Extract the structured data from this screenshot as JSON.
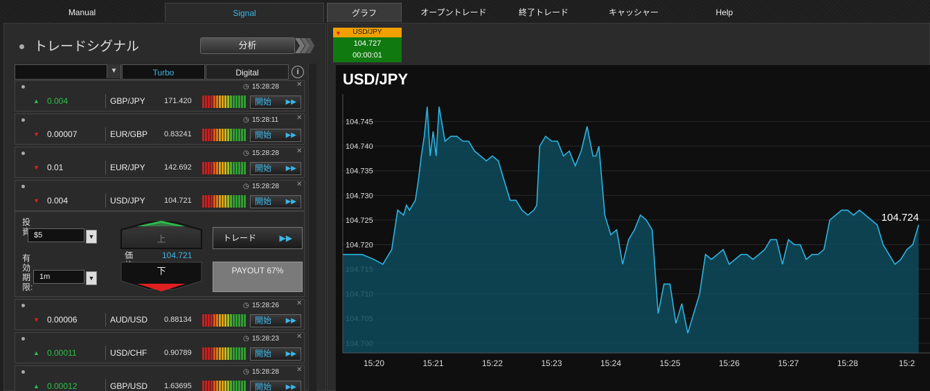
{
  "top_tabs": {
    "manual": "Manual",
    "signal": "Signal",
    "graph": "グラフ",
    "open_trades": "オープントレード",
    "closed_trades": "終了トレード",
    "cashier": "キャッシャー",
    "help": "Help"
  },
  "left_panel": {
    "title": "トレードシグナル",
    "analyze_button": "分析",
    "filter": {
      "select_value": "",
      "turbo": "Turbo",
      "digital": "Digital",
      "info": "i"
    }
  },
  "signals": [
    {
      "time": "15:28:28",
      "direction": "up",
      "change": "0.004",
      "pair": "GBP/JPY",
      "rate": "171.420",
      "start": "開始"
    },
    {
      "time": "15:28:11",
      "direction": "down",
      "change": "0.00007",
      "pair": "EUR/GBP",
      "rate": "0.83241",
      "start": "開始"
    },
    {
      "time": "15:28:28",
      "direction": "down",
      "change": "0.01",
      "pair": "EUR/JPY",
      "rate": "142.692",
      "start": "開始"
    },
    {
      "time": "15:28:28",
      "direction": "down",
      "change": "0.004",
      "pair": "USD/JPY",
      "rate": "104.721",
      "start": "開始"
    },
    {
      "time": "15:28:26",
      "direction": "down",
      "change": "0.00006",
      "pair": "AUD/USD",
      "rate": "0.88134",
      "start": "開始"
    },
    {
      "time": "15:28:23",
      "direction": "up",
      "change": "0.00011",
      "pair": "USD/CHF",
      "rate": "0.90789",
      "start": "開始"
    },
    {
      "time": "15:28:28",
      "direction": "up",
      "change": "0.00012",
      "pair": "GBP/USD",
      "rate": "1.63695",
      "start": "開始"
    }
  ],
  "trade_form": {
    "invest_label": "投資:",
    "invest_value": "$5",
    "expiry_label": "有効期限:",
    "expiry_value": "1m",
    "up_label": "上",
    "down_label": "下",
    "price_label": "価格",
    "price_value": "104.721",
    "trade_button": "トレード",
    "payout": "PAYOUT 67%"
  },
  "mini_quote": {
    "pair": "USD/JPY",
    "rate": "104.727",
    "countdown": "00:00:01"
  },
  "colors": {
    "accent": "#3db6e8",
    "up": "#2ec04a",
    "down": "#e02020",
    "mini_header": "#f0a000",
    "mini_body": "#107a10"
  },
  "chart_data": {
    "type": "area",
    "title": "USD/JPY",
    "last_value_label": "104.724",
    "xlabel": "",
    "ylabel": "",
    "ylim": [
      104.698,
      104.75
    ],
    "y_ticks": [
      "104.700",
      "104.705",
      "104.710",
      "104.715",
      "104.720",
      "104.725",
      "104.730",
      "104.735",
      "104.740",
      "104.745"
    ],
    "x_ticks": [
      "15:20",
      "15:21",
      "15:22",
      "15:23",
      "15:24",
      "15:25",
      "15:26",
      "15:27",
      "15:28",
      "15:2"
    ],
    "xlim": [
      15.33,
      25.1
    ],
    "x_minutes": [
      19.8,
      20.0,
      20.15,
      20.3,
      20.4,
      20.5,
      20.55,
      20.6,
      20.7,
      20.75,
      20.8,
      20.85,
      20.9,
      20.95,
      21.0,
      21.05,
      21.1,
      21.2,
      21.3,
      21.4,
      21.5,
      21.6,
      21.7,
      21.8,
      21.9,
      22.0,
      22.1,
      22.2,
      22.3,
      22.4,
      22.5,
      22.6,
      22.7,
      22.75,
      22.8,
      22.9,
      23.0,
      23.1,
      23.2,
      23.3,
      23.4,
      23.5,
      23.6,
      23.7,
      23.75,
      23.8,
      23.9,
      24.0,
      24.1,
      24.2,
      24.3,
      24.4,
      24.5,
      24.6,
      24.7,
      24.8,
      24.9,
      25.0,
      25.1,
      25.2,
      25.3,
      25.4,
      25.5,
      25.6,
      25.7,
      25.8,
      25.9,
      26.0,
      26.1,
      26.2,
      26.3,
      26.4,
      26.5,
      26.6,
      26.7,
      26.8,
      26.9,
      27.0,
      27.1,
      27.2,
      27.3,
      27.4,
      27.5,
      27.6,
      27.7,
      27.8,
      27.9,
      28.0,
      28.1,
      28.2,
      28.3,
      28.4,
      28.5,
      28.6,
      28.7,
      28.8,
      28.9,
      29.0,
      29.1,
      29.2
    ],
    "y_values": [
      104.718,
      104.717,
      104.716,
      104.719,
      104.727,
      104.726,
      104.728,
      104.727,
      104.729,
      104.733,
      104.738,
      104.742,
      104.748,
      104.738,
      104.743,
      104.738,
      104.748,
      104.741,
      104.742,
      104.742,
      104.741,
      104.741,
      104.739,
      104.738,
      104.737,
      104.738,
      104.737,
      104.733,
      104.729,
      104.729,
      104.727,
      104.726,
      104.727,
      104.728,
      104.74,
      104.742,
      104.741,
      104.741,
      104.738,
      104.739,
      104.736,
      104.739,
      104.744,
      104.738,
      104.738,
      104.74,
      104.726,
      104.722,
      104.723,
      104.716,
      104.721,
      104.723,
      104.726,
      104.725,
      104.723,
      104.706,
      104.712,
      104.712,
      104.704,
      104.708,
      104.702,
      104.706,
      104.71,
      104.718,
      104.717,
      104.718,
      104.719,
      104.716,
      104.717,
      104.718,
      104.718,
      104.717,
      104.718,
      104.719,
      104.721,
      104.721,
      104.716,
      104.721,
      104.72,
      104.72,
      104.717,
      104.718,
      104.718,
      104.719,
      104.725,
      104.726,
      104.727,
      104.727,
      104.726,
      104.727,
      104.726,
      104.725,
      104.724,
      104.72,
      104.718,
      104.716,
      104.717,
      104.719,
      104.72,
      104.724
    ]
  }
}
